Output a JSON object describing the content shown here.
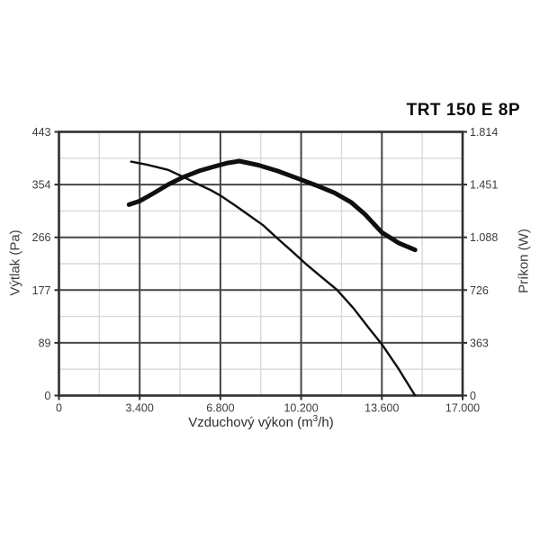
{
  "title": "TRT 150 E 8P",
  "chart_data": {
    "type": "line",
    "title": "TRT 150 E 8P",
    "xlabel": "Vzduchový výkon (m³/h)",
    "xlabel_parts": {
      "pre": "Vzduchový výkon (m",
      "sup": "3",
      "post": "/h)"
    },
    "ylabel_left": "Výtlak (Pa)",
    "ylabel_right": "Príkon (W)",
    "xlim": [
      0,
      17000
    ],
    "ylim_left": [
      0,
      443
    ],
    "ylim_right": [
      0,
      1814
    ],
    "x_tick_values": [
      0,
      3400,
      6800,
      10200,
      13600,
      17000
    ],
    "x_tick_labels": [
      "0",
      "3.400",
      "6.800",
      "10.200",
      "13.600",
      "17.000"
    ],
    "x_minor_values": [
      1700,
      5100,
      8500,
      11900,
      15300
    ],
    "y_left_tick_labels": [
      "0",
      "89",
      "177",
      "266",
      "354",
      "443"
    ],
    "y_right_tick_labels": [
      "0",
      "363",
      "726",
      "1.088",
      "1.451",
      "1.814"
    ],
    "grid": {
      "major_color": "#474747",
      "minor_color": "#d9d9d9",
      "border_color": "#2e2e2e"
    },
    "text_color": "#3c3c3c",
    "curve_color": "#0f0f0f",
    "legend": "none",
    "series": [
      {
        "name": "Výtlak (Pa)",
        "axis": "left",
        "style": "thin",
        "points": [
          [
            3040,
            393
          ],
          [
            3700,
            388
          ],
          [
            4300,
            382
          ],
          [
            4600,
            379
          ],
          [
            5200,
            368
          ],
          [
            5800,
            356
          ],
          [
            6400,
            345
          ],
          [
            6800,
            336
          ],
          [
            7400,
            320
          ],
          [
            8000,
            303
          ],
          [
            8600,
            286
          ],
          [
            9200,
            264
          ],
          [
            9800,
            243
          ],
          [
            10400,
            221
          ],
          [
            11000,
            201
          ],
          [
            11700,
            178
          ],
          [
            12400,
            147
          ],
          [
            13100,
            111
          ],
          [
            13600,
            86
          ],
          [
            14300,
            45
          ],
          [
            15000,
            0
          ]
        ]
      },
      {
        "name": "Príkon (W)",
        "axis": "right",
        "style": "thick",
        "points": [
          [
            2950,
            1313
          ],
          [
            3400,
            1338
          ],
          [
            4000,
            1393
          ],
          [
            4600,
            1452
          ],
          [
            5200,
            1500
          ],
          [
            5900,
            1545
          ],
          [
            6600,
            1578
          ],
          [
            7100,
            1600
          ],
          [
            7600,
            1613
          ],
          [
            8400,
            1585
          ],
          [
            9200,
            1545
          ],
          [
            10000,
            1497
          ],
          [
            10800,
            1448
          ],
          [
            11600,
            1395
          ],
          [
            12300,
            1330
          ],
          [
            12900,
            1245
          ],
          [
            13600,
            1122
          ],
          [
            14300,
            1050
          ],
          [
            15000,
            1002
          ]
        ]
      }
    ]
  }
}
